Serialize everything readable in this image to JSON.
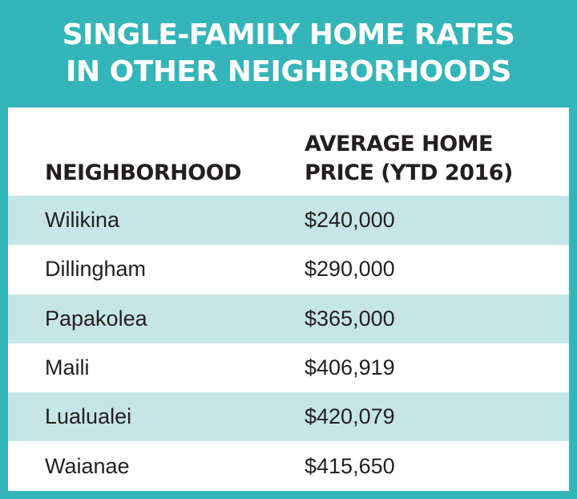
{
  "chart_data": {
    "type": "table",
    "title_lines": [
      "SINGLE-FAMILY HOME RATES",
      "IN OTHER NEIGHBORHOODS"
    ],
    "columns": [
      "NEIGHBORHOOD",
      [
        "AVERAGE HOME",
        "PRICE (YTD 2016)"
      ]
    ],
    "rows": [
      {
        "neighborhood": "Wilikina",
        "price": "$240,000",
        "value": 240000
      },
      {
        "neighborhood": "Dillingham",
        "price": "$290,000",
        "value": 290000
      },
      {
        "neighborhood": "Papakolea",
        "price": "$365,000",
        "value": 365000
      },
      {
        "neighborhood": "Maili",
        "price": "$406,919",
        "value": 406919
      },
      {
        "neighborhood": "Lualualei",
        "price": "$420,079",
        "value": 420079
      },
      {
        "neighborhood": "Waianae",
        "price": "$415,650",
        "value": 415650
      }
    ]
  },
  "colors": {
    "teal": "#34b5b9",
    "row_shade": "#c6e5e6",
    "text": "#231f20"
  }
}
